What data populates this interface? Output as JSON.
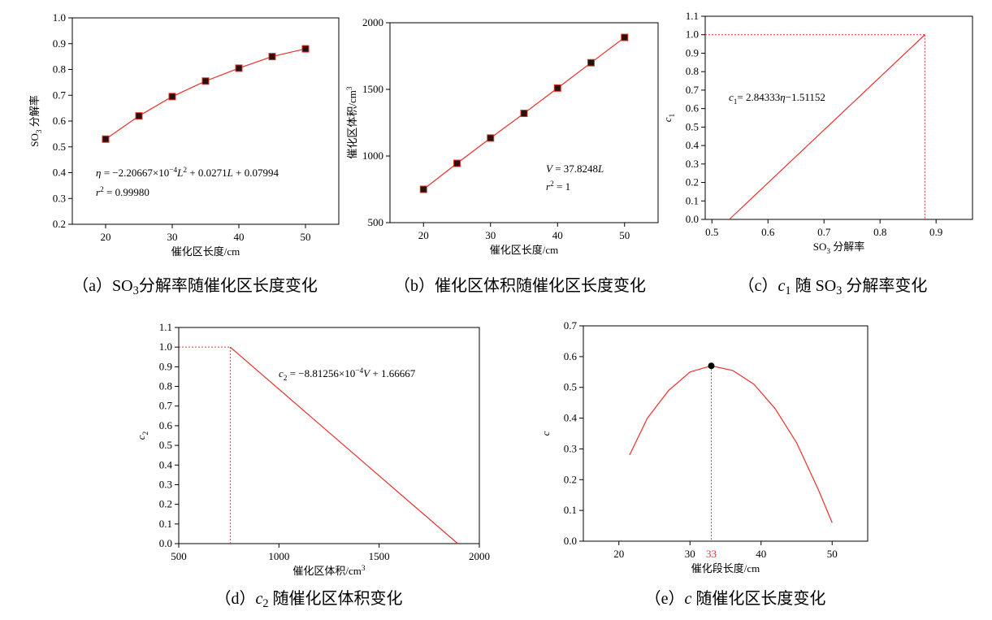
{
  "chart_data": [
    {
      "type": "scatter",
      "color": "#e8302a",
      "marker_color": "#2a1010",
      "caption": [
        {
          "text": "（a）SO"
        },
        {
          "text": "3",
          "shift": "sub"
        },
        {
          "text": "分解率随催化区长度变化"
        }
      ],
      "x_label": "催化区长度/cm",
      "y_label": [
        {
          "text": "SO"
        },
        {
          "text": "3",
          "shift": "sub"
        },
        {
          "text": " 分解率"
        }
      ],
      "x": [
        20,
        25,
        30,
        35,
        40,
        45,
        50
      ],
      "values": [
        0.53,
        0.62,
        0.695,
        0.755,
        0.805,
        0.85,
        0.88
      ],
      "xlim": [
        15,
        55
      ],
      "xticks": [
        20,
        30,
        40,
        50
      ],
      "ylim": [
        0.2,
        1.0
      ],
      "yticks": [
        0.2,
        0.3,
        0.4,
        0.5,
        0.6,
        0.7,
        0.8,
        0.9,
        {
          "value": 1,
          "label": "1.0"
        }
      ],
      "annotations": [
        [
          {
            "text": "η",
            "italic": true
          },
          {
            "text": " = −2.20667×10"
          },
          {
            "text": "−4",
            "shift": "sup"
          },
          {
            "text": "L",
            "italic": true
          },
          {
            "text": "2",
            "shift": "sup"
          },
          {
            "text": " + 0.0271"
          },
          {
            "text": "L",
            "italic": true
          },
          {
            "text": " + 0.07994"
          }
        ],
        [
          {
            "text": "r",
            "italic": true
          },
          {
            "text": "2",
            "shift": "sup"
          },
          {
            "text": " = 0.99980"
          }
        ]
      ]
    },
    {
      "type": "scatter",
      "color": "#e8302a",
      "marker_color": "#2a1010",
      "caption": [
        {
          "text": "（b）催化区体积随催化区长度变化"
        }
      ],
      "x_label": "催化区长度/cm",
      "y_label": [
        {
          "text": "催化区体积/cm"
        },
        {
          "text": "3",
          "shift": "sup"
        }
      ],
      "x": [
        20,
        25,
        30,
        35,
        40,
        45,
        50
      ],
      "values": [
        750,
        945,
        1135,
        1320,
        1510,
        1700,
        1890
      ],
      "xlim": [
        15,
        55
      ],
      "xticks": [
        20,
        30,
        40,
        50
      ],
      "ylim": [
        500,
        2000
      ],
      "yticks": [
        500,
        1000,
        1500,
        2000
      ],
      "annotations": [
        [
          {
            "text": "V",
            "italic": true
          },
          {
            "text": " = 37.8248"
          },
          {
            "text": "L",
            "italic": true
          }
        ],
        [
          {
            "text": "r",
            "italic": true
          },
          {
            "text": "2",
            "shift": "sup"
          },
          {
            "text": " = 1"
          }
        ]
      ]
    },
    {
      "type": "line",
      "color": "#e8302a",
      "caption": [
        {
          "text": "（c）"
        },
        {
          "text": "c",
          "italic": true
        },
        {
          "text": "1",
          "shift": "sub"
        },
        {
          "text": " 随 SO"
        },
        {
          "text": "3",
          "shift": "sub"
        },
        {
          "text": " 分解率变化"
        }
      ],
      "x_label": [
        {
          "text": "SO"
        },
        {
          "text": "3",
          "shift": "sub"
        },
        {
          "text": " 分解率"
        }
      ],
      "y_label": [
        {
          "text": "c",
          "italic": true
        },
        {
          "text": "1",
          "shift": "sub"
        }
      ],
      "x": [
        0.531,
        0.88
      ],
      "values": [
        0,
        1
      ],
      "guide": {
        "x": 0.88,
        "y": 1
      },
      "xlim": [
        0.488,
        0.965
      ],
      "xticks": [
        0.5,
        0.6,
        0.7,
        0.8,
        0.9
      ],
      "ylim": [
        0,
        1.1
      ],
      "yticks": [
        {
          "value": 0,
          "label": "0.0"
        },
        0.1,
        0.2,
        0.3,
        0.4,
        0.5,
        0.6,
        0.7,
        0.8,
        0.9,
        {
          "value": 1,
          "label": "1.0"
        },
        1.1
      ],
      "annotations": [
        [
          {
            "text": "c",
            "italic": true
          },
          {
            "text": "1",
            "shift": "sub"
          },
          {
            "text": "= 2.84333"
          },
          {
            "text": "η",
            "italic": true
          },
          {
            "text": "−1.51152"
          }
        ]
      ]
    },
    {
      "type": "line",
      "color": "#e8302a",
      "caption": [
        {
          "text": "（d）"
        },
        {
          "text": "c",
          "italic": true
        },
        {
          "text": "2",
          "shift": "sub"
        },
        {
          "text": " 随催化区体积变化"
        }
      ],
      "x_label": [
        {
          "text": "催化区体积/cm"
        },
        {
          "text": "3",
          "shift": "sup"
        }
      ],
      "y_label": [
        {
          "text": "c",
          "italic": true
        },
        {
          "text": "2",
          "shift": "sub"
        }
      ],
      "x": [
        757,
        1892
      ],
      "values": [
        1,
        0
      ],
      "guide": {
        "x": 757,
        "y": 1
      },
      "xlim": [
        500,
        2000
      ],
      "xticks": [
        500,
        1000,
        1500,
        2000
      ],
      "ylim": [
        0,
        1.1
      ],
      "yticks": [
        {
          "value": 0,
          "label": "0.0"
        },
        0.1,
        0.2,
        0.3,
        0.4,
        0.5,
        0.6,
        0.7,
        0.8,
        0.9,
        {
          "value": 1,
          "label": "1.0"
        },
        1.1
      ],
      "annotations": [
        [
          {
            "text": "c",
            "italic": true
          },
          {
            "text": "2",
            "shift": "sub"
          },
          {
            "text": " = −8.81256×10"
          },
          {
            "text": "−4",
            "shift": "sup"
          },
          {
            "text": "V",
            "italic": true
          },
          {
            "text": " + 1.66667"
          }
        ]
      ]
    },
    {
      "type": "line",
      "color": "#e8302a",
      "caption": [
        {
          "text": "（e）"
        },
        {
          "text": "c",
          "italic": true
        },
        {
          "text": " 随催化区长度变化"
        }
      ],
      "x_label": "催化段长度/cm",
      "y_label": [
        {
          "text": "c",
          "italic": true
        }
      ],
      "x": [
        21.5,
        24,
        27,
        30,
        33,
        36,
        39,
        42,
        45,
        48,
        50
      ],
      "values": [
        0.28,
        0.4,
        0.49,
        0.55,
        0.57,
        0.555,
        0.51,
        0.43,
        0.32,
        0.17,
        0.06
      ],
      "peak": {
        "x": 33,
        "y": 0.57
      },
      "xlim": [
        15,
        55
      ],
      "xticks": [
        20,
        30,
        40,
        50
      ],
      "ylim": [
        0,
        0.7
      ],
      "yticks": [
        {
          "value": 0,
          "label": "0.0"
        },
        0.1,
        0.2,
        0.3,
        0.4,
        0.5,
        0.6,
        0.7
      ]
    }
  ]
}
